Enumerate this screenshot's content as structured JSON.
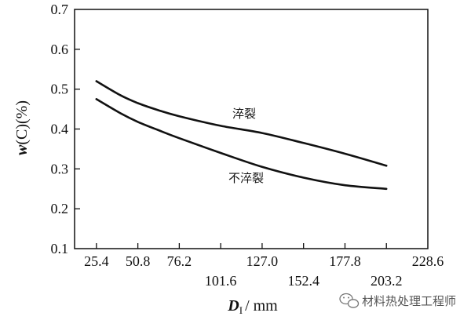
{
  "chart_data": {
    "type": "line",
    "x_tick_labels_top": [
      "25.4",
      "50.8",
      "76.2",
      "127.0",
      "177.8",
      "228.6"
    ],
    "x_tick_labels_bottom": [
      "101.6",
      "152.4",
      "203.2"
    ],
    "y_tick_labels": [
      "0.1",
      "0.2",
      "0.3",
      "0.4",
      "0.5",
      "0.6",
      "0.7"
    ],
    "xlim": [
      12,
      228.6
    ],
    "ylim": [
      0.1,
      0.7
    ],
    "grid": false,
    "y_label_prefix": "w",
    "y_label_rest": "(C)(%)",
    "x_label_main": "D",
    "x_label_sub": "I",
    "x_label_unit": "/ mm",
    "series": [
      {
        "name": "淬裂",
        "x": [
          25.4,
          40,
          50.8,
          63.5,
          76.2,
          101.6,
          127.0,
          152.4,
          177.8,
          203.2
        ],
        "y": [
          0.52,
          0.485,
          0.465,
          0.447,
          0.432,
          0.408,
          0.39,
          0.365,
          0.338,
          0.308
        ]
      },
      {
        "name": "不淬裂",
        "x": [
          25.4,
          40,
          50.8,
          63.5,
          76.2,
          101.6,
          127.0,
          152.4,
          177.8,
          203.2
        ],
        "y": [
          0.475,
          0.44,
          0.418,
          0.397,
          0.377,
          0.34,
          0.305,
          0.278,
          0.259,
          0.25
        ]
      }
    ]
  },
  "watermark": {
    "text": "材料热处理工程师",
    "icon": "wechat-icon"
  }
}
